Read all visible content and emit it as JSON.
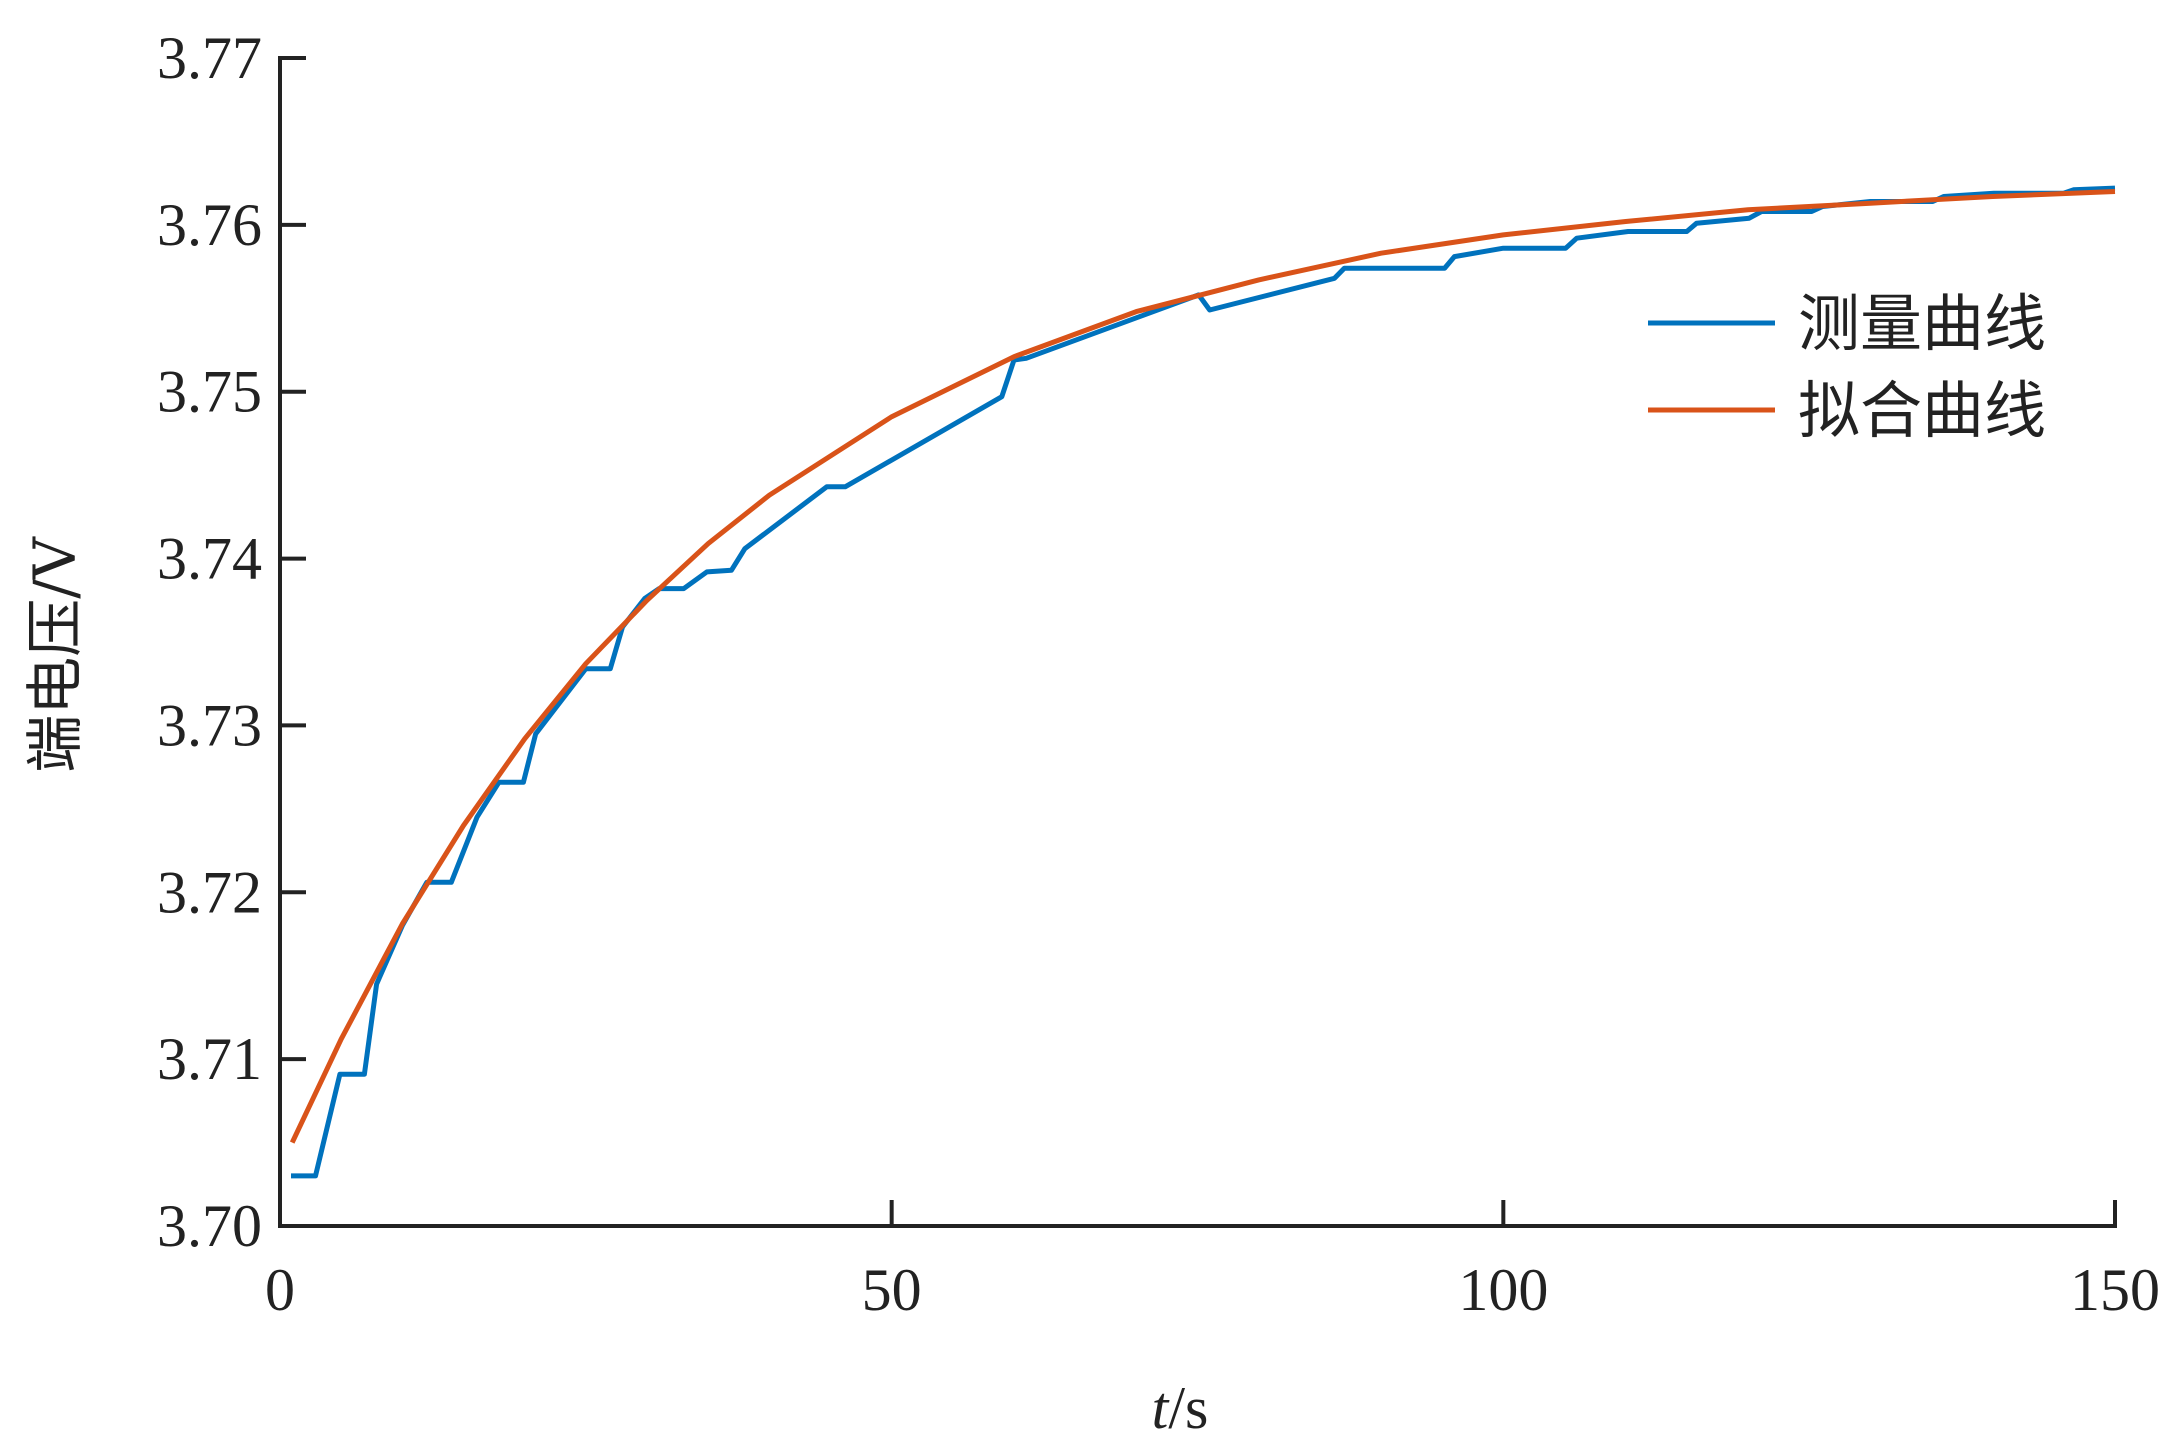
{
  "chart_data": {
    "type": "line",
    "title": "",
    "xlabel_italic": "t",
    "xlabel_unit": "/s",
    "ylabel": "端电压/V",
    "xlim": [
      0,
      150
    ],
    "ylim": [
      3.7,
      3.77
    ],
    "xticks": [
      "0",
      "50",
      "100",
      "150"
    ],
    "xtick_values": [
      0,
      50,
      100,
      150
    ],
    "yticks": [
      "3.70",
      "3.71",
      "3.72",
      "3.73",
      "3.74",
      "3.75",
      "3.76",
      "3.77"
    ],
    "ytick_values": [
      3.7,
      3.71,
      3.72,
      3.73,
      3.74,
      3.75,
      3.76,
      3.77
    ],
    "grid": false,
    "legend_position": "top-right",
    "series": [
      {
        "name": "测量曲线",
        "color": "#0072BD",
        "x": [
          0.9,
          2.9,
          4.9,
          6.9,
          7.9,
          10,
          12,
          14,
          16.1,
          17.9,
          19.9,
          20.9,
          25,
          27,
          28,
          29.8,
          31,
          33,
          34.9,
          36.9,
          38,
          44.7,
          46.2,
          59,
          60,
          61,
          75.1,
          76,
          86.2,
          87,
          95.2,
          96,
          100,
          105.1,
          106,
          110.2,
          115,
          115.8,
          120.1,
          121.1,
          125.2,
          126.1,
          130,
          135.1,
          136,
          140.1,
          145.8,
          146.6,
          150
        ],
        "y": [
          3.703,
          3.703,
          3.7091,
          3.7091,
          3.7145,
          3.718,
          3.7206,
          3.7206,
          3.7245,
          3.7266,
          3.7266,
          3.7295,
          3.7334,
          3.7334,
          3.7359,
          3.7376,
          3.7382,
          3.7382,
          3.7392,
          3.7393,
          3.7406,
          3.7443,
          3.7443,
          3.7497,
          3.7519,
          3.752,
          3.7558,
          3.7549,
          3.7568,
          3.7574,
          3.7574,
          3.7581,
          3.7586,
          3.7586,
          3.7592,
          3.7596,
          3.7596,
          3.7601,
          3.7604,
          3.7608,
          3.7608,
          3.7611,
          3.7614,
          3.7614,
          3.7617,
          3.7619,
          3.7619,
          3.7621,
          3.7622
        ]
      },
      {
        "name": "拟合曲线",
        "color": "#D95319",
        "x": [
          1,
          5,
          10,
          15,
          20,
          25,
          30,
          35,
          40,
          50,
          60,
          70,
          80,
          90,
          100,
          110,
          120,
          130,
          140,
          150
        ],
        "y": [
          3.705,
          3.7112,
          3.7181,
          3.724,
          3.7292,
          3.7337,
          3.7375,
          3.7409,
          3.7438,
          3.7485,
          3.7521,
          3.7548,
          3.7567,
          3.7583,
          3.7594,
          3.7602,
          3.7609,
          3.7613,
          3.7617,
          3.762
        ]
      }
    ]
  }
}
